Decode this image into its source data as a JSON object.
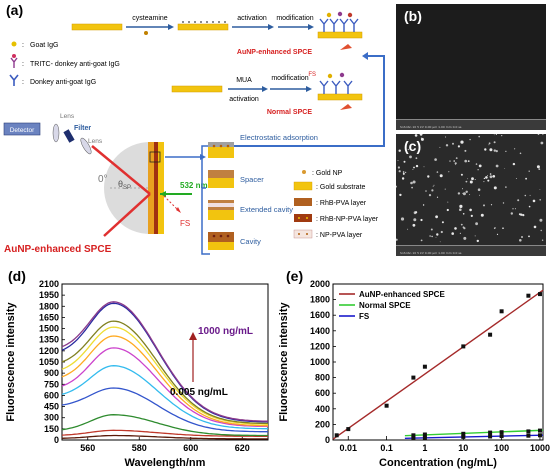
{
  "panels": {
    "a": "(a)",
    "b": "(b)",
    "c": "(c)",
    "d": "(d)",
    "e": "(e)"
  },
  "schematic": {
    "steps": {
      "cysteamine": "cysteamine",
      "activation1": "activation",
      "modification1": "modification",
      "mua": "MUA",
      "activation2": "activation",
      "modification2": "modification"
    },
    "legend": {
      "goat_igg": "Goat IgG",
      "tritc": "TRITC- donkey anti-goat IgG",
      "donkey": "Donkey anti-goat IgG"
    },
    "results": {
      "aunp_spce": "AuNP-enhanced SPCE",
      "normal_spce": "Normal SPCE",
      "fs_small": "FS"
    },
    "optics": {
      "detector": "Detector",
      "lens1": "Lens",
      "filter": "Filter",
      "lens2": "Lens",
      "angle0": "0°",
      "theta": "θ",
      "theta_sub": "SP",
      "laser": "532 nm",
      "fs": "FS",
      "bottom_label": "AuNP-enhanced  SPCE"
    },
    "structures": {
      "electrostatic": "Electrostatic adsorption",
      "spacer": "Spacer",
      "extended": "Extended cavity",
      "cavity": "Cavity"
    },
    "materials": {
      "gold_np": ": Gold NP",
      "gold_substrate": ": Gold substrate",
      "rhb_pva": ": RhB-PVA layer",
      "rhb_np_pva": ": RhB-NP-PVA layer",
      "np_pva": ": NP-PVA layer"
    }
  },
  "sem": {
    "b": {
      "footer": "SnSnSn 10  5 kV    0.00 μm    1.00 mm    0.0 ss"
    },
    "c": {
      "footer": "SnSnSn 10  5 kV    0.00 μm    1.00 mm    0.0 ss"
    }
  },
  "chart_data": [
    {
      "panel": "d",
      "type": "line",
      "xlabel": "Wavelength/nm",
      "ylabel": "Fluorescence intensity",
      "xlim": [
        550,
        630
      ],
      "ylim": [
        0,
        2100
      ],
      "xticks": [
        560,
        580,
        600,
        620
      ],
      "yticks": [
        0,
        150,
        300,
        450,
        600,
        750,
        900,
        1050,
        1200,
        1350,
        1500,
        1650,
        1800,
        1950,
        2100
      ],
      "annotation_high": "1000 ng/mL",
      "annotation_low": "0.005 ng/mL",
      "peak_wavelength": 570,
      "colors": [
        "#5a1a0a",
        "#c0392b",
        "#2e8b2e",
        "#3355cc",
        "#33bbee",
        "#cc44cc",
        "#ffaa22",
        "#eedd33",
        "#808020",
        "#2a2aa0",
        "#8b3a8b"
      ],
      "series": [
        {
          "peak": 60,
          "base_left": 20,
          "base_right": 15
        },
        {
          "peak": 130,
          "base_left": 60,
          "base_right": 50
        },
        {
          "peak": 340,
          "base_left": 120,
          "base_right": 60
        },
        {
          "peak": 700,
          "base_left": 450,
          "base_right": 110
        },
        {
          "peak": 1000,
          "base_left": 580,
          "base_right": 150
        },
        {
          "peak": 1240,
          "base_left": 680,
          "base_right": 180
        },
        {
          "peak": 1400,
          "base_left": 800,
          "base_right": 190
        },
        {
          "peak": 1520,
          "base_left": 900,
          "base_right": 210
        },
        {
          "peak": 1600,
          "base_left": 1000,
          "base_right": 220
        },
        {
          "peak": 1840,
          "base_left": 1150,
          "base_right": 240
        },
        {
          "peak": 1860,
          "base_left": 1200,
          "base_right": 250
        }
      ]
    },
    {
      "panel": "e",
      "type": "scatter",
      "xlabel": "Concentration (ng/mL)",
      "ylabel": "Fluorescence intensity",
      "xscale": "log",
      "xlim": [
        0.004,
        1200
      ],
      "ylim": [
        0,
        2000
      ],
      "xticks": [
        0.01,
        0.1,
        1,
        10,
        100,
        1000
      ],
      "xtick_labels": [
        "0.01",
        "0.1",
        "1",
        "10",
        "100",
        "1000"
      ],
      "yticks": [
        0,
        200,
        400,
        600,
        800,
        1000,
        1200,
        1400,
        1600,
        1800,
        2000
      ],
      "legend_position": "top-left",
      "series": [
        {
          "name": "AuNP-enhanced SPCE",
          "color": "#a52a2a",
          "x": [
            0.005,
            0.01,
            0.1,
            0.5,
            1,
            10,
            50,
            100,
            500,
            1000
          ],
          "y": [
            60,
            140,
            440,
            800,
            940,
            1200,
            1350,
            1650,
            1850,
            1870
          ],
          "fit": {
            "x": [
              0.004,
              1200
            ],
            "y": [
              10,
              1920
            ]
          }
        },
        {
          "name": "Normal SPCE",
          "color": "#33cc33",
          "x": [
            0.5,
            1,
            10,
            50,
            100,
            500,
            1000
          ],
          "y": [
            60,
            70,
            80,
            95,
            100,
            110,
            120
          ],
          "fit": {
            "x": [
              0.3,
              1200
            ],
            "y": [
              55,
              125
            ]
          }
        },
        {
          "name": "FS",
          "color": "#1a1acc",
          "x": [
            0.5,
            1,
            10,
            50,
            100,
            500,
            1000
          ],
          "y": [
            25,
            30,
            40,
            45,
            50,
            55,
            60
          ],
          "fit": {
            "x": [
              0.3,
              1200
            ],
            "y": [
              22,
              62
            ]
          }
        }
      ]
    }
  ]
}
